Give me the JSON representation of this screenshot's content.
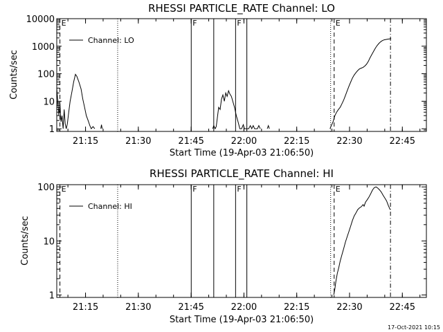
{
  "footer": {
    "timestamp": "17-Oct-2021 10:15"
  },
  "chart_data": [
    {
      "type": "line",
      "title": "RHESSI PARTICLE_RATE Channel: LO",
      "xlabel": "Start Time (19-Apr-03 21:06:50)",
      "ylabel": "Counts/sec",
      "yscale": "log",
      "xlim_min": [
        0,
        176
      ],
      "ylim": [
        0.8,
        10000
      ],
      "x_ticks": [
        {
          "min": 8.17,
          "label": "21:15"
        },
        {
          "min": 23.17,
          "label": "21:30"
        },
        {
          "min": 38.17,
          "label": "21:45"
        },
        {
          "min": 53.17,
          "label": "22:00"
        },
        {
          "min": 68.17,
          "label": "22:15"
        },
        {
          "min": 83.17,
          "label": "22:30"
        },
        {
          "min": 98.17,
          "label": "22:45"
        }
      ],
      "y_ticks": [
        {
          "v": 1,
          "label": "1"
        },
        {
          "v": 10,
          "label": "10"
        },
        {
          "v": 100,
          "label": "100"
        },
        {
          "v": 1000,
          "label": "1000"
        },
        {
          "v": 10000,
          "label": "10000"
        }
      ],
      "legend": "Channel: LO",
      "legend_position": "top-left",
      "markers": [
        {
          "min": 0.9,
          "style": "dashed",
          "label": "E"
        },
        {
          "min": 17.3,
          "style": "dotted",
          "label": ""
        },
        {
          "min": 38.2,
          "style": "solid",
          "label": "F"
        },
        {
          "min": 44.6,
          "style": "solid",
          "label": ""
        },
        {
          "min": 50.8,
          "style": "solid",
          "label": "F"
        },
        {
          "min": 54.0,
          "style": "solid",
          "label": ""
        },
        {
          "min": 77.8,
          "style": "dotted",
          "label": ""
        },
        {
          "min": 78.8,
          "style": "dashed",
          "label": "E"
        },
        {
          "min": 94.8,
          "style": "dashdot",
          "label": ""
        }
      ],
      "series": [
        {
          "name": "Channel: LO",
          "points": [
            [
              0,
              30
            ],
            [
              0.3,
              10
            ],
            [
              0.6,
              3
            ],
            [
              0.9,
              8
            ],
            [
              1.2,
              1.8
            ],
            [
              1.5,
              3
            ],
            [
              1.8,
              1
            ],
            [
              2.1,
              5
            ],
            [
              2.4,
              1.5
            ],
            [
              2.7,
              1
            ],
            [
              3.0,
              1.5
            ],
            [
              3.4,
              4
            ],
            [
              3.8,
              10
            ],
            [
              4.3,
              22
            ],
            [
              4.8,
              50
            ],
            [
              5.3,
              95
            ],
            [
              5.7,
              80
            ],
            [
              6.3,
              50
            ],
            [
              6.9,
              28
            ],
            [
              7.4,
              12
            ],
            [
              7.9,
              6
            ],
            [
              8.4,
              3
            ],
            [
              8.9,
              2
            ],
            [
              9.4,
              1.3
            ],
            [
              9.8,
              1
            ],
            [
              10.3,
              1.2
            ],
            [
              10.8,
              1
            ],
            [
              12.5,
              1
            ],
            [
              12.7,
              1.4
            ],
            [
              12.9,
              1
            ],
            [
              44.3,
              1
            ],
            [
              44.6,
              1.3
            ],
            [
              45.0,
              1
            ],
            [
              45.3,
              1.2
            ],
            [
              45.7,
              3
            ],
            [
              46.0,
              6
            ],
            [
              46.4,
              5
            ],
            [
              46.8,
              12
            ],
            [
              47.2,
              17
            ],
            [
              47.6,
              10
            ],
            [
              48.0,
              20
            ],
            [
              48.4,
              15
            ],
            [
              48.8,
              24
            ],
            [
              49.2,
              18
            ],
            [
              49.6,
              15
            ],
            [
              50.0,
              10
            ],
            [
              50.5,
              6
            ],
            [
              51.0,
              3
            ],
            [
              51.5,
              1.8
            ],
            [
              52.0,
              1
            ],
            [
              52.5,
              1
            ],
            [
              53.0,
              1.4
            ],
            [
              53.3,
              1
            ],
            [
              54.5,
              1
            ],
            [
              55.0,
              1.3
            ],
            [
              55.4,
              1
            ],
            [
              55.8,
              1.3
            ],
            [
              56.2,
              1
            ],
            [
              57.0,
              1
            ],
            [
              57.4,
              1.3
            ],
            [
              57.8,
              1
            ],
            [
              59.8,
              1
            ],
            [
              60.1,
              1.3
            ],
            [
              60.4,
              1
            ],
            [
              77.6,
              1
            ],
            [
              78.0,
              1.3
            ],
            [
              78.5,
              1.8
            ],
            [
              79.0,
              3
            ],
            [
              79.5,
              4
            ],
            [
              80.0,
              5
            ],
            [
              80.5,
              6
            ],
            [
              81.0,
              8
            ],
            [
              81.5,
              11
            ],
            [
              82.0,
              16
            ],
            [
              82.5,
              24
            ],
            [
              83.0,
              35
            ],
            [
              83.5,
              50
            ],
            [
              84.0,
              70
            ],
            [
              84.5,
              90
            ],
            [
              85.0,
              110
            ],
            [
              85.5,
              130
            ],
            [
              86.0,
              150
            ],
            [
              86.5,
              160
            ],
            [
              87.0,
              170
            ],
            [
              87.5,
              190
            ],
            [
              88.0,
              220
            ],
            [
              88.5,
              280
            ],
            [
              89.0,
              380
            ],
            [
              89.5,
              500
            ],
            [
              90.0,
              650
            ],
            [
              90.5,
              850
            ],
            [
              91.0,
              1050
            ],
            [
              91.5,
              1250
            ],
            [
              92.0,
              1450
            ],
            [
              92.5,
              1600
            ],
            [
              93.0,
              1700
            ],
            [
              93.5,
              1750
            ],
            [
              94.0,
              1800
            ],
            [
              94.5,
              1850
            ],
            [
              95.0,
              1900
            ]
          ]
        }
      ]
    },
    {
      "type": "line",
      "title": "RHESSI PARTICLE_RATE Channel: HI",
      "xlabel": "Start Time (19-Apr-03 21:06:50)",
      "ylabel": "Counts/sec",
      "yscale": "log",
      "xlim_min": [
        0,
        176
      ],
      "ylim": [
        0.9,
        110
      ],
      "x_ticks": [
        {
          "min": 8.17,
          "label": "21:15"
        },
        {
          "min": 23.17,
          "label": "21:30"
        },
        {
          "min": 38.17,
          "label": "21:45"
        },
        {
          "min": 53.17,
          "label": "22:00"
        },
        {
          "min": 68.17,
          "label": "22:15"
        },
        {
          "min": 83.17,
          "label": "22:30"
        },
        {
          "min": 98.17,
          "label": "22:45"
        }
      ],
      "y_ticks": [
        {
          "v": 1,
          "label": "1"
        },
        {
          "v": 10,
          "label": "10"
        },
        {
          "v": 100,
          "label": "100"
        }
      ],
      "legend": "Channel: HI",
      "legend_position": "top-left",
      "markers": [
        {
          "min": 0.9,
          "style": "dashed",
          "label": "E"
        },
        {
          "min": 17.3,
          "style": "dotted",
          "label": ""
        },
        {
          "min": 38.2,
          "style": "solid",
          "label": "F"
        },
        {
          "min": 44.6,
          "style": "solid",
          "label": ""
        },
        {
          "min": 50.8,
          "style": "solid",
          "label": "F"
        },
        {
          "min": 54.0,
          "style": "solid",
          "label": ""
        },
        {
          "min": 77.8,
          "style": "dotted",
          "label": ""
        },
        {
          "min": 78.8,
          "style": "dashed",
          "label": "E"
        },
        {
          "min": 94.8,
          "style": "dashdot",
          "label": ""
        }
      ],
      "series": [
        {
          "name": "Channel: HI",
          "points": [
            [
              78.7,
              1
            ],
            [
              79.0,
              1.3
            ],
            [
              79.3,
              1.8
            ],
            [
              79.7,
              2.5
            ],
            [
              80.1,
              3.2
            ],
            [
              80.5,
              4.2
            ],
            [
              81.0,
              5.5
            ],
            [
              81.5,
              7.2
            ],
            [
              82.0,
              9.5
            ],
            [
              82.5,
              12
            ],
            [
              83.0,
              15
            ],
            [
              83.5,
              19
            ],
            [
              84.0,
              24
            ],
            [
              84.5,
              29
            ],
            [
              85.0,
              33
            ],
            [
              85.5,
              38
            ],
            [
              86.0,
              41
            ],
            [
              86.5,
              43
            ],
            [
              87.0,
              47
            ],
            [
              87.3,
              44
            ],
            [
              87.7,
              52
            ],
            [
              88.2,
              58
            ],
            [
              88.7,
              65
            ],
            [
              89.2,
              75
            ],
            [
              89.7,
              88
            ],
            [
              90.2,
              97
            ],
            [
              90.7,
              100
            ],
            [
              91.2,
              95
            ],
            [
              91.7,
              88
            ],
            [
              92.2,
              80
            ],
            [
              92.7,
              70
            ],
            [
              93.2,
              62
            ],
            [
              93.7,
              55
            ],
            [
              94.2,
              45
            ],
            [
              94.7,
              38
            ]
          ]
        }
      ]
    }
  ]
}
